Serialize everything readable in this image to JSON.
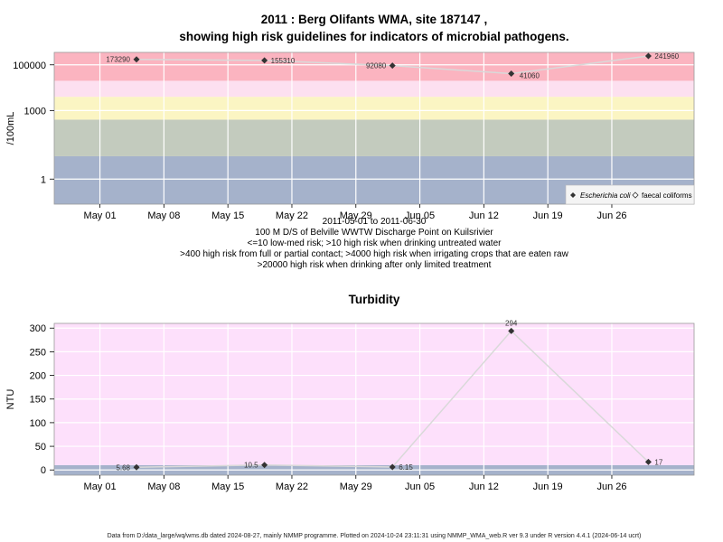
{
  "figure": {
    "footer": "Data from D:/data_large/wq/wms.db dated 2024-08-27, mainly NMMP programme. Plotted on 2024-10-24 23:11:31 using NMMP_WMA_web.R ver 9.3 under R version 4.4.1 (2024-06-14 ucrt)"
  },
  "colors": {
    "band_red": "#fbb4c0",
    "band_pink_light": "#fde0f0",
    "band_yellow": "#fbf5c3",
    "band_grey_green": "#c3cbbe",
    "band_blue_grey": "#a5b2cb",
    "turb_bg": "#fde0fb",
    "turb_base": "#a5b2cb",
    "line": "#d9d9d9",
    "point": "#333333"
  },
  "chart_data": [
    {
      "type": "line",
      "title": "2011 : Berg Olifants WMA, site 187147 ,",
      "subtitle": "showing high risk guidelines for indicators of microbial pathogens.",
      "ylabel": "/100mL",
      "yscale": "log10",
      "ylim": [
        0.08,
        350000
      ],
      "xlim": [
        "2011-04-26",
        "2011-07-05"
      ],
      "x_ticks": [
        "May 01",
        "May 08",
        "May 15",
        "May 22",
        "May 29",
        "Jun 05",
        "Jun 12",
        "Jun 19",
        "Jun 26"
      ],
      "x_tick_dates": [
        "2011-05-01",
        "2011-05-08",
        "2011-05-15",
        "2011-05-22",
        "2011-05-29",
        "2011-06-05",
        "2011-06-12",
        "2011-06-19",
        "2011-06-26"
      ],
      "y_ticks": [
        1,
        1000,
        100000
      ],
      "y_tick_labels": [
        "1",
        "1000",
        "100000"
      ],
      "grid": true,
      "bands": [
        {
          "from": 0.08,
          "to": 10,
          "color": "#a5b2cb"
        },
        {
          "from": 10,
          "to": 400,
          "color": "#c3cbbe"
        },
        {
          "from": 400,
          "to": 4000,
          "color": "#fbf5c3"
        },
        {
          "from": 4000,
          "to": 20000,
          "color": "#fde0f0"
        },
        {
          "from": 20000,
          "to": 350000,
          "color": "#fbb4c0"
        }
      ],
      "x_caption_lines": [
        "2011-05-01 to 2011-06-30",
        "100 M D/S of Belville WWTW Discharge Point on Kuilsrivier",
        "<=10 low-med risk; >10 high risk when drinking untreated water",
        ">400 high risk from full or partial contact; >4000 high risk when irrigating crops that are eaten raw",
        ">20000 high risk when drinking after only limited treatment"
      ],
      "legend_position": "bottom-right",
      "legend": [
        {
          "label": "Escherichia coli",
          "marker": "filled-diamond"
        },
        {
          "label": "faecal coliforms",
          "marker": "open-diamond"
        }
      ],
      "series": [
        {
          "name": "Escherichia coli",
          "x": [
            "2011-05-05",
            "2011-05-19",
            "2011-06-02",
            "2011-06-15",
            "2011-06-30"
          ],
          "values": [
            173290,
            155310,
            92080,
            41060,
            241960
          ],
          "labels": [
            "173290",
            "155310",
            "92080",
            "41060",
            "241960"
          ]
        }
      ]
    },
    {
      "type": "line",
      "title": "Turbidity",
      "ylabel": "NTU",
      "ylim": [
        -11,
        310
      ],
      "xlim": [
        "2011-04-26",
        "2011-07-05"
      ],
      "x_ticks": [
        "May 01",
        "May 08",
        "May 15",
        "May 22",
        "May 29",
        "Jun 05",
        "Jun 12",
        "Jun 19",
        "Jun 26"
      ],
      "x_tick_dates": [
        "2011-05-01",
        "2011-05-08",
        "2011-05-15",
        "2011-05-22",
        "2011-05-29",
        "2011-06-05",
        "2011-06-12",
        "2011-06-19",
        "2011-06-26"
      ],
      "y_ticks": [
        0,
        50,
        100,
        150,
        200,
        250,
        300
      ],
      "y_tick_labels": [
        "0",
        "50",
        "100",
        "150",
        "200",
        "250",
        "300"
      ],
      "grid": true,
      "bands": [
        {
          "from": -11,
          "to": 10,
          "color": "#a5b2cb"
        },
        {
          "from": 10,
          "to": 310,
          "color": "#fde0fb"
        }
      ],
      "series": [
        {
          "x": [
            "2011-05-05",
            "2011-05-19",
            "2011-06-02",
            "2011-06-15",
            "2011-06-30"
          ],
          "values": [
            5.68,
            10.5,
            6.15,
            294,
            17
          ],
          "labels": [
            "5.68",
            "10.5",
            "6.15",
            "294",
            "17"
          ]
        }
      ]
    }
  ]
}
